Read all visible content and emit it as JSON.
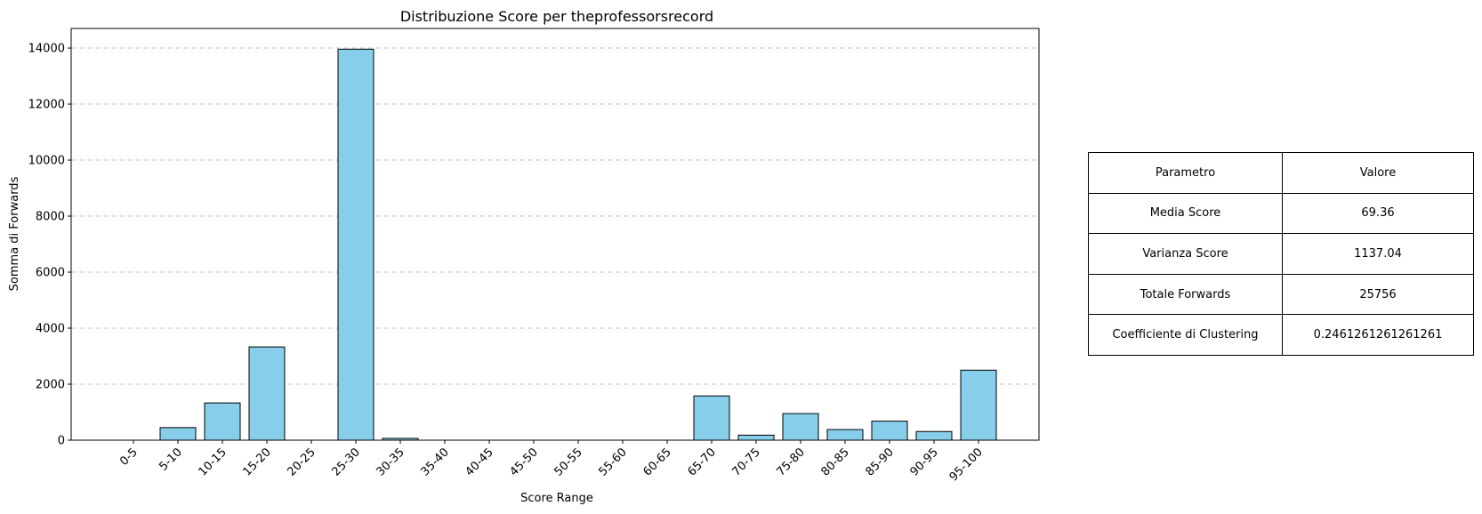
{
  "chart_data": {
    "type": "bar",
    "title": "Distribuzione Score per theprofessorsrecord",
    "xlabel": "Score Range",
    "ylabel": "Somma di Forwards",
    "categories": [
      "0-5",
      "5-10",
      "10-15",
      "15-20",
      "20-25",
      "25-30",
      "30-35",
      "35-40",
      "40-45",
      "45-50",
      "50-55",
      "55-60",
      "60-65",
      "65-70",
      "70-75",
      "75-80",
      "80-85",
      "85-90",
      "90-95",
      "95-100"
    ],
    "values": [
      0,
      450,
      1330,
      3330,
      0,
      13960,
      65,
      0,
      0,
      0,
      0,
      0,
      0,
      1580,
      180,
      950,
      380,
      680,
      310,
      2500
    ],
    "ylim": [
      0,
      14700
    ],
    "yticks": [
      0,
      2000,
      4000,
      6000,
      8000,
      10000,
      12000,
      14000
    ],
    "grid": "y-dashed",
    "colors": {
      "bar_fill": "#87ceeb",
      "bar_edge": "#000000",
      "grid": "#c0c0c0"
    }
  },
  "table": {
    "header": {
      "param": "Parametro",
      "value": "Valore"
    },
    "rows": [
      {
        "param": "Media Score",
        "value": "69.36"
      },
      {
        "param": "Varianza Score",
        "value": "1137.04"
      },
      {
        "param": "Totale Forwards",
        "value": "25756"
      },
      {
        "param": "Coefficiente di Clustering",
        "value": "0.2461261261261261"
      }
    ]
  }
}
